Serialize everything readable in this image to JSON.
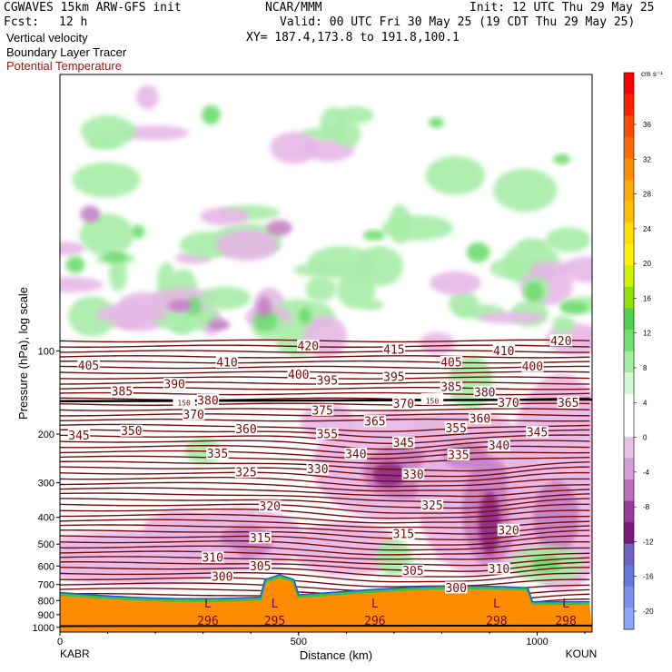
{
  "header": {
    "model": "CGWAVES 15km ARW-GFS init",
    "org": "NCAR/MMM",
    "init": "Init: 12 UTC Thu 29 May 25",
    "fcst_label": "Fcst:",
    "fcst_value": "12 h",
    "valid": "Valid: 00 UTC Fri 30 May 25 (19 CDT Thu 29 May 25)",
    "field1": "Vertical velocity",
    "xy": "XY= 187.4,173.8 to 191.8,100.1",
    "field2": "Boundary Layer Tracer",
    "field3": "Potential Temperature"
  },
  "colors": {
    "theta": "#7a0a0a",
    "terrain": "#ff8c00",
    "ground_line": "#000000"
  },
  "chart_data": {
    "type": "heatmap",
    "title": "",
    "xlabel": "Distance (km)",
    "ylabel": "Pressure (hPa), log scale",
    "x_ticks": [
      "0",
      "500",
      "1000"
    ],
    "x_end_labels": [
      "KABR",
      "KOUN"
    ],
    "y_ticks": [
      "100",
      "200",
      "300",
      "400",
      "500",
      "600",
      "700",
      "800",
      "900",
      "1000"
    ],
    "xlim": [
      0,
      1115
    ],
    "ylim": [
      1040,
      10
    ],
    "colorbar": {
      "unit": "cm s⁻¹",
      "ticks": [
        "36",
        "32",
        "28",
        "24",
        "20",
        "16",
        "12",
        "8",
        "4",
        "0",
        "-4",
        "-8",
        "-12",
        "-16",
        "-20"
      ],
      "colors": [
        "#ff0000",
        "#ff2400",
        "#ff4a00",
        "#ff6a00",
        "#ff8c00",
        "#ffa800",
        "#ffc000",
        "#ffdc00",
        "#fff200",
        "#ccf000",
        "#8ee000",
        "#4fd04f",
        "#6ee06e",
        "#a0eca0",
        "#d2f7d2",
        "#ffffff",
        "#ffffff",
        "#e6bfe6",
        "#d69cd6",
        "#bc6fbc",
        "#9a3a9a",
        "#7a1a7a",
        "#7060c0",
        "#6a76e0",
        "#7a8ef0",
        "#8fa6ff"
      ]
    },
    "theta_labels": [
      {
        "value": "420",
        "x": 520,
        "p": 96
      },
      {
        "value": "415",
        "x": 700,
        "p": 99
      },
      {
        "value": "410",
        "x": 350,
        "p": 110
      },
      {
        "value": "410",
        "x": 930,
        "p": 100
      },
      {
        "value": "420",
        "x": 1050,
        "p": 92
      },
      {
        "value": "405",
        "x": 60,
        "p": 113
      },
      {
        "value": "405",
        "x": 820,
        "p": 110
      },
      {
        "value": "400",
        "x": 500,
        "p": 122
      },
      {
        "value": "400",
        "x": 990,
        "p": 114
      },
      {
        "value": "395",
        "x": 560,
        "p": 128
      },
      {
        "value": "395",
        "x": 700,
        "p": 124
      },
      {
        "value": "390",
        "x": 240,
        "p": 132
      },
      {
        "value": "385",
        "x": 130,
        "p": 140
      },
      {
        "value": "385",
        "x": 820,
        "p": 135
      },
      {
        "value": "380",
        "x": 310,
        "p": 151
      },
      {
        "value": "380",
        "x": 890,
        "p": 141
      },
      {
        "value": "370",
        "x": 940,
        "p": 154
      },
      {
        "value": "365",
        "x": 1065,
        "p": 154
      },
      {
        "value": "375",
        "x": 550,
        "p": 164
      },
      {
        "value": "370",
        "x": 280,
        "p": 170
      },
      {
        "value": "370",
        "x": 720,
        "p": 155
      },
      {
        "value": "365",
        "x": 660,
        "p": 180
      },
      {
        "value": "360",
        "x": 390,
        "p": 192
      },
      {
        "value": "360",
        "x": 880,
        "p": 176
      },
      {
        "value": "355",
        "x": 560,
        "p": 200
      },
      {
        "value": "355",
        "x": 830,
        "p": 190
      },
      {
        "value": "345",
        "x": 40,
        "p": 202
      },
      {
        "value": "350",
        "x": 150,
        "p": 195
      },
      {
        "value": "345",
        "x": 720,
        "p": 215
      },
      {
        "value": "345",
        "x": 1000,
        "p": 197
      },
      {
        "value": "340",
        "x": 620,
        "p": 236
      },
      {
        "value": "340",
        "x": 920,
        "p": 220
      },
      {
        "value": "335",
        "x": 330,
        "p": 235
      },
      {
        "value": "335",
        "x": 835,
        "p": 238
      },
      {
        "value": "330",
        "x": 540,
        "p": 268
      },
      {
        "value": "330",
        "x": 740,
        "p": 280
      },
      {
        "value": "325",
        "x": 390,
        "p": 275
      },
      {
        "value": "325",
        "x": 780,
        "p": 362
      },
      {
        "value": "320",
        "x": 440,
        "p": 365
      },
      {
        "value": "320",
        "x": 940,
        "p": 445
      },
      {
        "value": "315",
        "x": 420,
        "p": 475
      },
      {
        "value": "315",
        "x": 720,
        "p": 460
      },
      {
        "value": "310",
        "x": 320,
        "p": 560
      },
      {
        "value": "310",
        "x": 920,
        "p": 615
      },
      {
        "value": "305",
        "x": 420,
        "p": 600
      },
      {
        "value": "305",
        "x": 740,
        "p": 625
      },
      {
        "value": "300",
        "x": 340,
        "p": 655
      },
      {
        "value": "300",
        "x": 830,
        "p": 720
      },
      {
        "value": "150",
        "x": 260,
        "p": 152
      },
      {
        "value": "150",
        "x": 780,
        "p": 150
      }
    ],
    "lows": [
      {
        "label": "L",
        "value": "296",
        "x": 310
      },
      {
        "label": "L",
        "value": "295",
        "x": 450
      },
      {
        "label": "L",
        "value": "296",
        "x": 660
      },
      {
        "label": "L",
        "value": "298",
        "x": 915
      },
      {
        "label": "L",
        "value": "298",
        "x": 1060
      }
    ]
  }
}
